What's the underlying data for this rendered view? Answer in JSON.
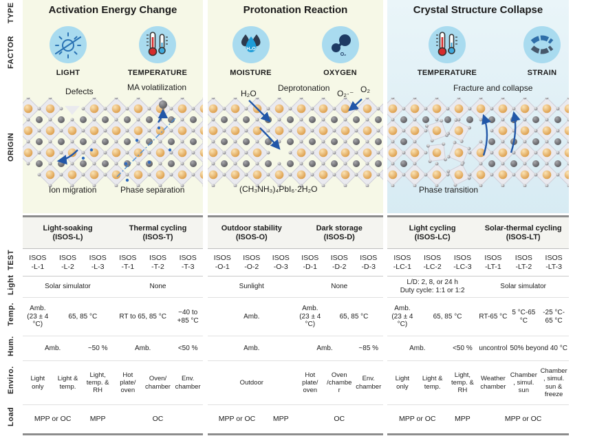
{
  "row_labels": {
    "type": "TYPE",
    "factor": "FACTOR",
    "origin": "ORIGIN",
    "test": "TEST",
    "light": "Light",
    "temp": "Temp.",
    "hum": "Hum.",
    "env": "Enviro.",
    "load": "Load"
  },
  "colors": {
    "panel_yellow": "#f6f8e7",
    "panel_blue": "#dcedf4",
    "icon_circle": "#a9dbef",
    "arrow_blue": "#2157a8",
    "thermo_red": "#d62b2b",
    "thermo_blue": "#3fa9dc",
    "molecule_navy": "#1d3a63",
    "table_border": "#8c8c8c"
  },
  "panels": [
    {
      "title": "Activation Energy Change",
      "factors": [
        {
          "label": "LIGHT",
          "icon": "sun-icon"
        },
        {
          "label": "TEMPERATURE",
          "icon": "thermometer-icon"
        }
      ],
      "origin": {
        "defects": "Defects",
        "ma": "MA volatilization",
        "ion": "Ion migration",
        "phase": "Phase separation"
      },
      "test": {
        "groups": [
          {
            "name": "Light-soaking",
            "code": "(ISOS-L)"
          },
          {
            "name": "Thermal cycling",
            "code": "(ISOS-T)"
          }
        ],
        "columns": [
          "ISOS\n-L-1",
          "ISOS\n-L-2",
          "ISOS\n-L-3",
          "ISOS\n-T-1",
          "ISOS\n-T-2",
          "ISOS\n-T-3"
        ],
        "rows": [
          {
            "key": "light",
            "cells": [
              {
                "span": 3,
                "text": "Solar simulator"
              },
              {
                "span": 3,
                "text": "None"
              }
            ]
          },
          {
            "key": "temp",
            "cells": [
              {
                "span": 1,
                "text": "Amb. (23 ± 4 °C)"
              },
              {
                "span": 2,
                "text": "65, 85 °C"
              },
              {
                "span": 2,
                "text": "RT to 65, 85 °C"
              },
              {
                "span": 1,
                "text": "−40 to +85 °C"
              }
            ]
          },
          {
            "key": "hum",
            "cells": [
              {
                "span": 2,
                "text": "Amb."
              },
              {
                "span": 1,
                "text": "~50 %"
              },
              {
                "span": 2,
                "text": "Amb."
              },
              {
                "span": 1,
                "text": "<50 %"
              }
            ]
          },
          {
            "key": "env",
            "cells": [
              {
                "span": 1,
                "text": "Light only"
              },
              {
                "span": 1,
                "text": "Light & temp."
              },
              {
                "span": 1,
                "text": "Light, temp. & RH"
              },
              {
                "span": 1,
                "text": "Hot plate/ oven"
              },
              {
                "span": 1,
                "text": "Oven/ chamber"
              },
              {
                "span": 1,
                "text": "Env. chamber"
              }
            ]
          },
          {
            "key": "load",
            "cells": [
              {
                "span": 2,
                "text": "MPP or OC"
              },
              {
                "span": 1,
                "text": "MPP"
              },
              {
                "span": 3,
                "text": "OC"
              }
            ]
          }
        ]
      }
    },
    {
      "title": "Protonation Reaction",
      "factors": [
        {
          "label": "MOISTURE",
          "icon": "water-drops-icon",
          "molecule": "H₂O"
        },
        {
          "label": "OXYGEN",
          "icon": "oxygen-molecule-icon",
          "molecule": "O₂"
        }
      ],
      "origin": {
        "h2o": "H₂O",
        "deprotonation": "Deprotonation",
        "superoxide": "O₂·⁻",
        "o2": "O₂",
        "formula": "(CH₃NH₃)₄PbI₆·2H₂O"
      },
      "test": {
        "groups": [
          {
            "name": "Outdoor stability",
            "code": "(ISOS-O)"
          },
          {
            "name": "Dark storage",
            "code": "(ISOS-D)"
          }
        ],
        "columns": [
          "ISOS\n-O-1",
          "ISOS\n-O-2",
          "ISOS\n-O-3",
          "ISOS\n-D-1",
          "ISOS\n-D-2",
          "ISOS\n-D-3"
        ],
        "rows": [
          {
            "key": "light",
            "cells": [
              {
                "span": 3,
                "text": "Sunlight"
              },
              {
                "span": 3,
                "text": "None"
              }
            ]
          },
          {
            "key": "temp",
            "cells": [
              {
                "span": 3,
                "text": "Amb."
              },
              {
                "span": 1,
                "text": "Amb. (23 ± 4 °C)"
              },
              {
                "span": 2,
                "text": "65, 85 °C"
              }
            ]
          },
          {
            "key": "hum",
            "cells": [
              {
                "span": 3,
                "text": "Amb."
              },
              {
                "span": 2,
                "text": "Amb."
              },
              {
                "span": 1,
                "text": "~85 %"
              }
            ]
          },
          {
            "key": "env",
            "cells": [
              {
                "span": 3,
                "text": "Outdoor"
              },
              {
                "span": 1,
                "text": "Hot plate/ oven"
              },
              {
                "span": 1,
                "text": "Oven /chamber"
              },
              {
                "span": 1,
                "text": "Env. chamber"
              }
            ]
          },
          {
            "key": "load",
            "cells": [
              {
                "span": 2,
                "text": "MPP or OC"
              },
              {
                "span": 1,
                "text": "MPP"
              },
              {
                "span": 3,
                "text": "OC"
              }
            ]
          }
        ]
      }
    },
    {
      "title": "Crystal Structure Collapse",
      "factors": [
        {
          "label": "TEMPERATURE",
          "icon": "thermometer-icon"
        },
        {
          "label": "STRAIN",
          "icon": "strain-icon"
        }
      ],
      "origin": {
        "fracture": "Fracture and collapse",
        "phase": "Phase transition"
      },
      "test": {
        "groups": [
          {
            "name": "Light cycling",
            "code": "(ISOS-LC)"
          },
          {
            "name": "Solar-thermal cycling",
            "code": "(ISOS-LT)"
          }
        ],
        "columns": [
          "ISOS\n-LC-1",
          "ISOS\n-LC-2",
          "ISOS\n-LC-3",
          "ISOS\n-LT-1",
          "ISOS\n-LT-2",
          "ISOS\n-LT-3"
        ],
        "rows": [
          {
            "key": "light",
            "cells": [
              {
                "span": 3,
                "text": "L/D: 2, 8, or 24 h\nDuty cycle: 1:1 or 1:2"
              },
              {
                "span": 3,
                "text": "Solar simulator"
              }
            ]
          },
          {
            "key": "temp",
            "cells": [
              {
                "span": 1,
                "text": "Amb. (23 ± 4 °C)"
              },
              {
                "span": 2,
                "text": "65, 85 °C"
              },
              {
                "span": 1,
                "text": "RT-65 °C"
              },
              {
                "span": 1,
                "text": "5 °C-65 °C"
              },
              {
                "span": 1,
                "text": "-25 °C-65 °C"
              }
            ]
          },
          {
            "key": "hum",
            "cells": [
              {
                "span": 2,
                "text": "Amb."
              },
              {
                "span": 1,
                "text": "<50 %"
              },
              {
                "span": 1,
                "text": "uncontrol"
              },
              {
                "span": 2,
                "text": "50% beyond 40 °C"
              }
            ]
          },
          {
            "key": "env",
            "cells": [
              {
                "span": 1,
                "text": "Light only"
              },
              {
                "span": 1,
                "text": "Light & temp."
              },
              {
                "span": 1,
                "text": "Light, temp. & RH"
              },
              {
                "span": 1,
                "text": "Weather chamber"
              },
              {
                "span": 1,
                "text": "Chamber, simul. sun"
              },
              {
                "span": 1,
                "text": "Chamber, simul. sun & freeze"
              }
            ]
          },
          {
            "key": "load",
            "cells": [
              {
                "span": 2,
                "text": "MPP or OC"
              },
              {
                "span": 1,
                "text": "MPP"
              },
              {
                "span": 3,
                "text": "MPP or OC"
              }
            ]
          }
        ]
      }
    }
  ]
}
